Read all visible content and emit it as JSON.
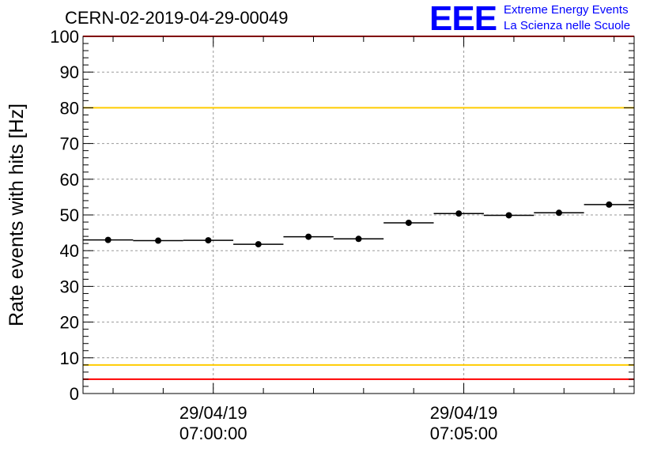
{
  "header": {
    "run_title": "CERN-02-2019-04-29-00049",
    "logo": {
      "text": "EEE",
      "line1": "Extreme Energy Events",
      "line2": "La Scienza nelle Scuole",
      "color": "#0000ff"
    }
  },
  "chart_data": {
    "type": "scatter",
    "title": "",
    "ylabel": "Rate events with hits [Hz]",
    "xlabel": "",
    "ylim": [
      0,
      100
    ],
    "xlim": [
      -2.6,
      8.4
    ],
    "x_unit": "minutes after 29/04/19 07:00:00",
    "yticks": [
      0,
      10,
      20,
      30,
      40,
      50,
      60,
      70,
      80,
      90,
      100
    ],
    "xtick_labels": [
      {
        "x": 0,
        "date": "29/04/19",
        "time": "07:00:00"
      },
      {
        "x": 5,
        "date": "29/04/19",
        "time": "07:05:00"
      }
    ],
    "grid": true,
    "bin_width_minutes": 1,
    "x": [
      -2.1,
      -1.1,
      -0.1,
      0.9,
      1.9,
      2.9,
      3.9,
      4.9,
      5.9,
      6.9,
      7.9
    ],
    "values": [
      43.0,
      42.8,
      42.9,
      41.8,
      43.9,
      43.3,
      47.8,
      50.4,
      49.9,
      50.6,
      52.9
    ],
    "reference_lines": [
      {
        "y": 100,
        "color": "#ff0000"
      },
      {
        "y": 80,
        "color": "#ffcc00"
      },
      {
        "y": 8,
        "color": "#ffcc00"
      },
      {
        "y": 4,
        "color": "#ff0000"
      }
    ],
    "marker_color": "#000000"
  }
}
